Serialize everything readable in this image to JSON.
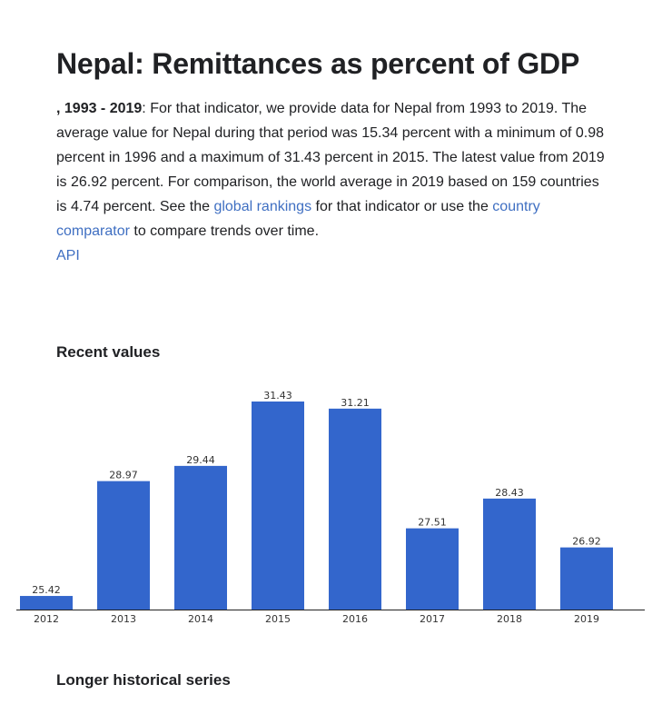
{
  "page": {
    "title": "Nepal: Remittances as percent of GDP",
    "intro": {
      "range": ", 1993 - 2019",
      "text1": ": For that indicator, we provide data for Nepal from 1993 to 2019. The average value for Nepal during that period was 15.34 percent with a minimum of 0.98 percent in 1996 and a maximum of 31.43 percent in 2015. The latest value from 2019 is 26.92 percent. For comparison, the world average in 2019 based on 159 countries is 4.74 percent. See the ",
      "link_rankings": "global rankings",
      "text2": " for that indicator or use the ",
      "link_comparator": "country comparator",
      "text3": " to compare trends over time."
    },
    "api_link": "API",
    "recent_heading": "Recent values",
    "historical_heading": "Longer historical series"
  },
  "chart_data": {
    "type": "bar",
    "categories": [
      "2012",
      "2013",
      "2014",
      "2015",
      "2016",
      "2017",
      "2018",
      "2019"
    ],
    "values": [
      25.42,
      28.97,
      29.44,
      31.43,
      31.21,
      27.51,
      28.43,
      26.92
    ],
    "data_labels": [
      "25.42",
      "28.97",
      "29.44",
      "31.43",
      "31.21",
      "27.51",
      "28.43",
      "26.92"
    ],
    "ylim": [
      25.0,
      31.43
    ],
    "color": "#3366cc",
    "grid": false,
    "legend": "none"
  }
}
